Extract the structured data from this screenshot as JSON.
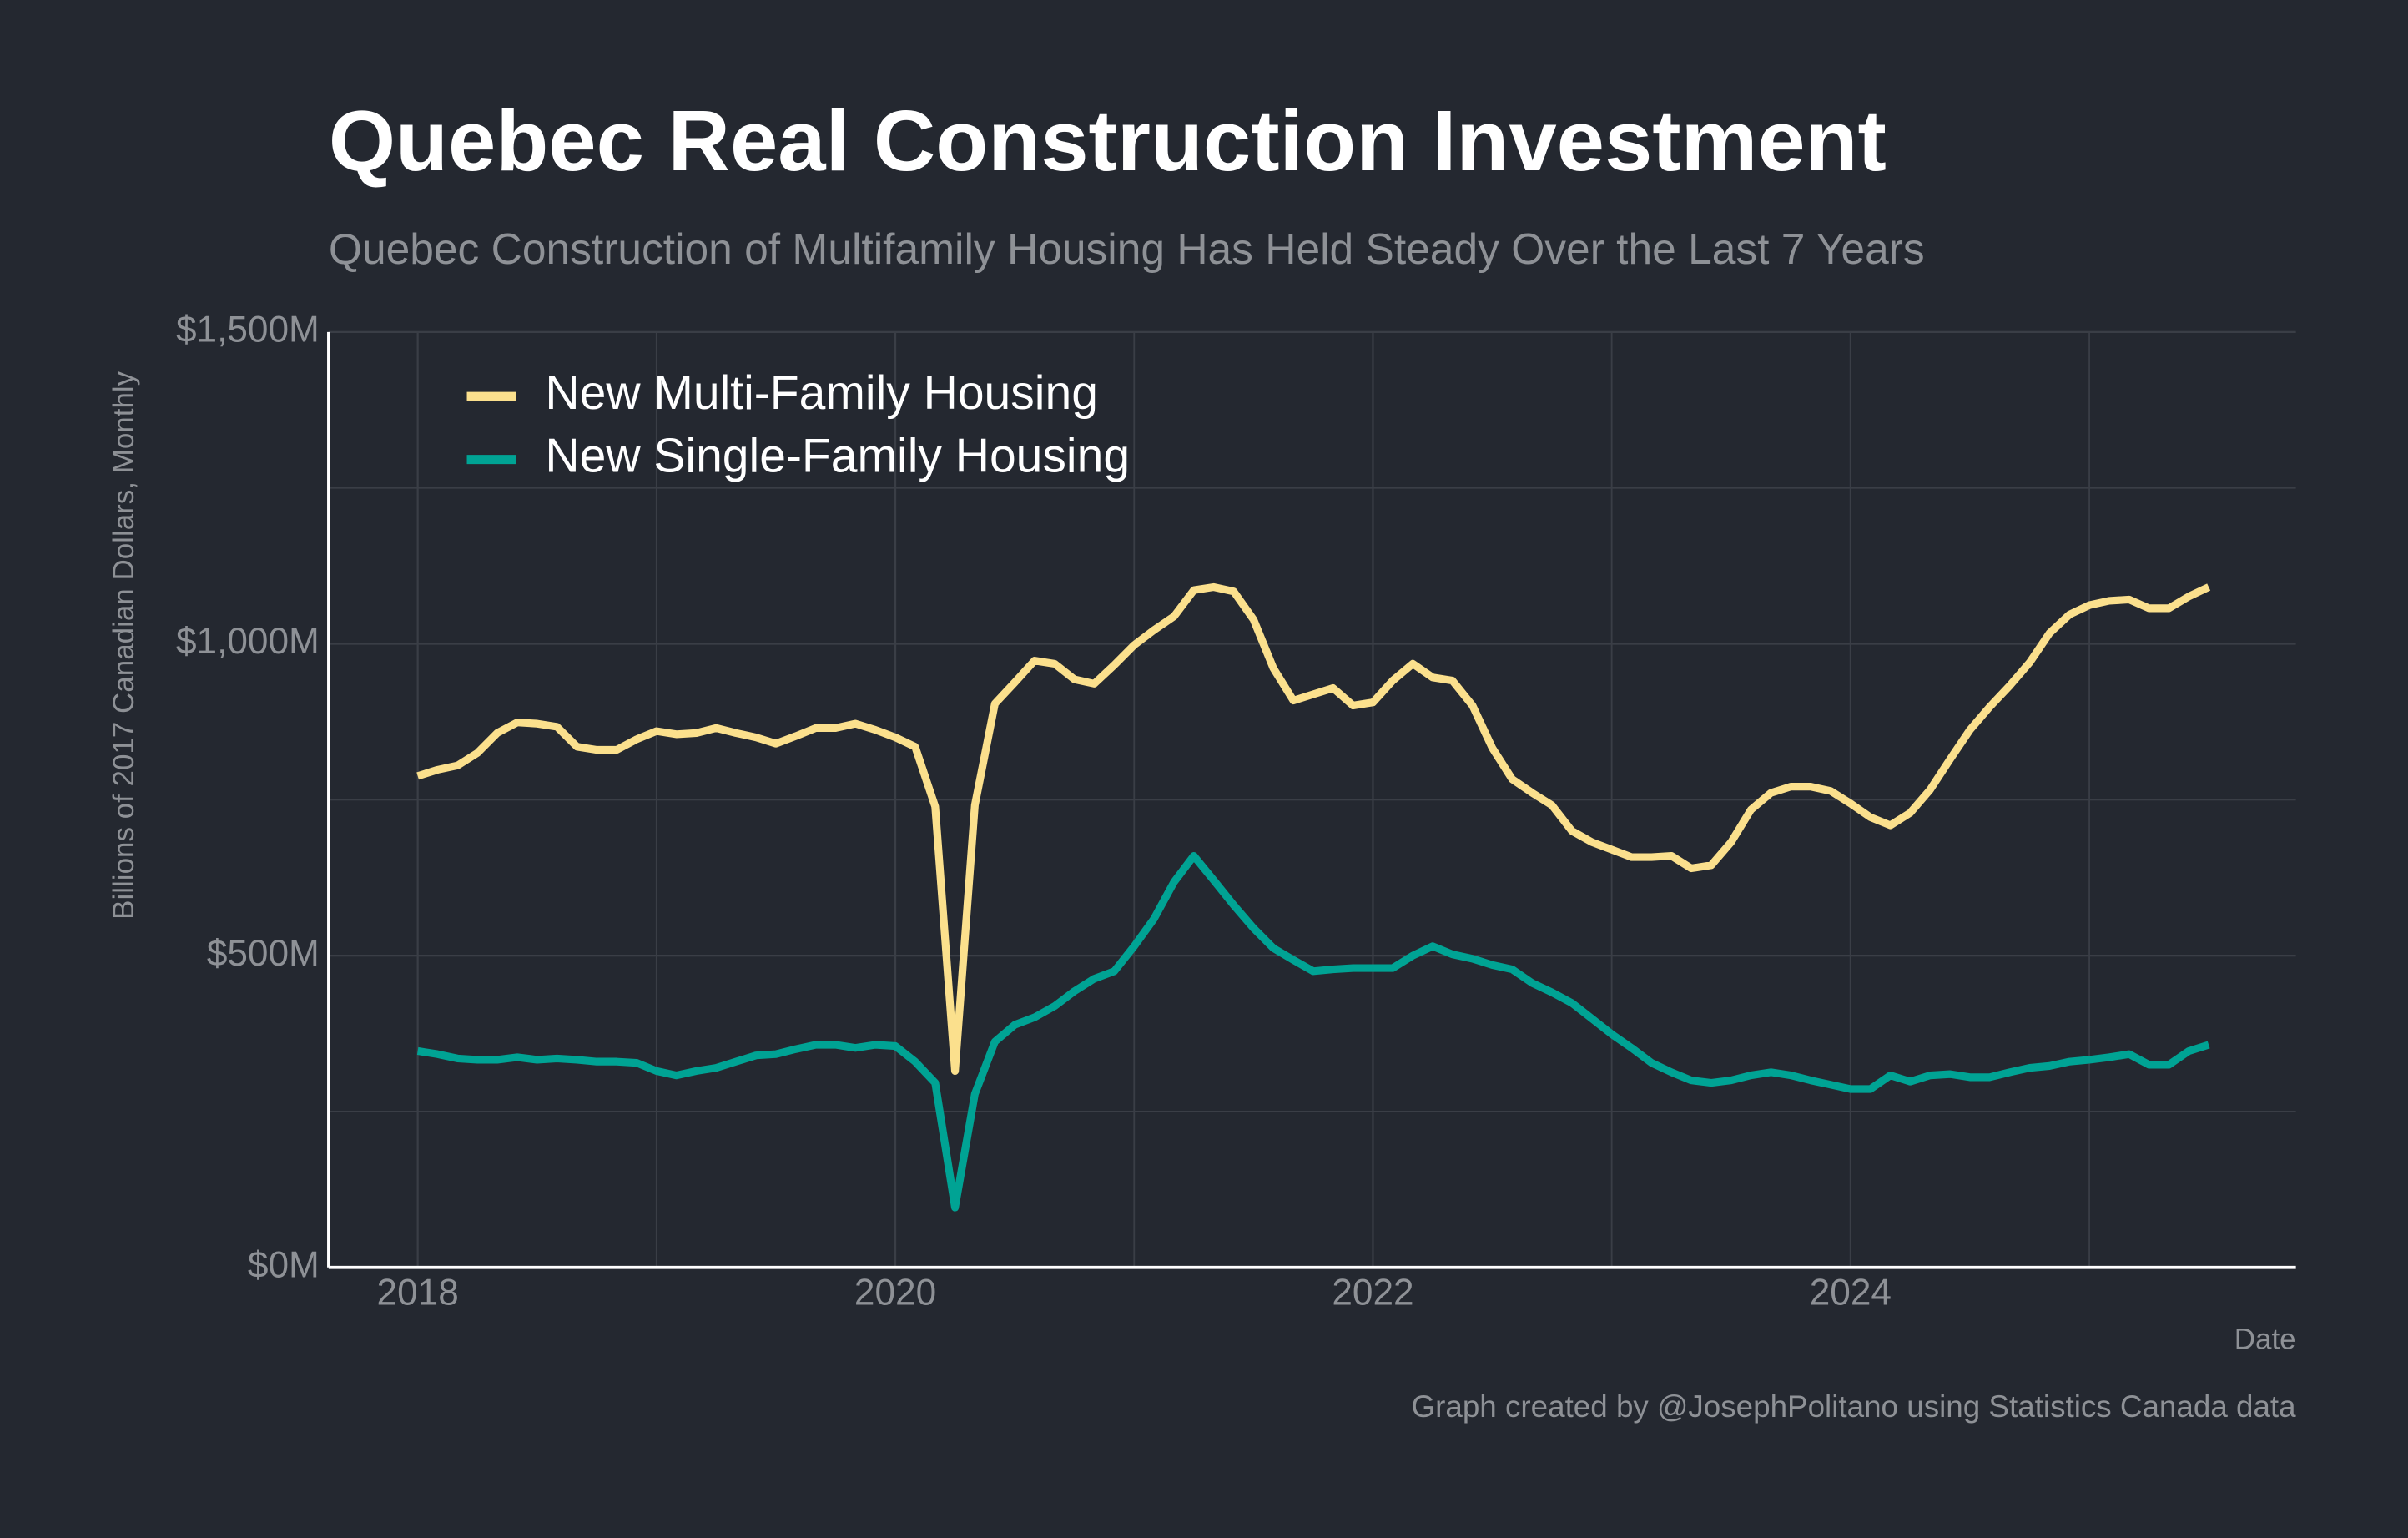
{
  "chart_data": {
    "type": "line",
    "title": "Quebec Real Construction Investment",
    "subtitle": "Quebec Construction of Multifamily Housing Has Held Steady Over the Last 7 Years",
    "ylabel": "Billions of 2017 Canadian Dollars, Monthly",
    "xlabel": "Date",
    "caption": "Graph created by @JosephPolitano using Statistics Canada data",
    "x": [
      2018,
      2018.083,
      2018.167,
      2018.25,
      2018.333,
      2018.417,
      2018.5,
      2018.583,
      2018.667,
      2018.75,
      2018.833,
      2018.917,
      2019,
      2019.083,
      2019.167,
      2019.25,
      2019.333,
      2019.417,
      2019.5,
      2019.583,
      2019.667,
      2019.75,
      2019.833,
      2019.917,
      2020,
      2020.083,
      2020.167,
      2020.25,
      2020.333,
      2020.417,
      2020.5,
      2020.583,
      2020.667,
      2020.75,
      2020.833,
      2020.917,
      2021,
      2021.083,
      2021.167,
      2021.25,
      2021.333,
      2021.417,
      2021.5,
      2021.583,
      2021.667,
      2021.75,
      2021.833,
      2021.917,
      2022,
      2022.083,
      2022.167,
      2022.25,
      2022.333,
      2022.417,
      2022.5,
      2022.583,
      2022.667,
      2022.75,
      2022.833,
      2022.917,
      2023,
      2023.083,
      2023.167,
      2023.25,
      2023.333,
      2023.417,
      2023.5,
      2023.583,
      2023.667,
      2023.75,
      2023.833,
      2023.917,
      2024,
      2024.083,
      2024.167,
      2024.25,
      2024.333,
      2024.417,
      2024.5,
      2024.583,
      2024.667,
      2024.75,
      2024.833,
      2024.917,
      2025,
      2025.083,
      2025.167,
      2025.25,
      2025.333,
      2025.417,
      2025.5
    ],
    "series": [
      {
        "name": "New Multi-Family Housing",
        "color": "#fbe08d",
        "values": [
          788,
          798,
          805,
          825,
          857,
          874,
          872,
          867,
          835,
          830,
          830,
          847,
          860,
          855,
          857,
          865,
          857,
          850,
          840,
          852,
          865,
          865,
          872,
          862,
          850,
          835,
          739,
          315,
          741,
          904,
          938,
          973,
          968,
          943,
          936,
          966,
          998,
          1022,
          1044,
          1086,
          1091,
          1084,
          1039,
          961,
          909,
          919,
          929,
          901,
          906,
          941,
          968,
          946,
          941,
          901,
          833,
          783,
          761,
          741,
          700,
          682,
          670,
          658,
          658,
          660,
          640,
          645,
          682,
          734,
          761,
          771,
          771,
          764,
          744,
          722,
          709,
          729,
          766,
          815,
          862,
          899,
          933,
          970,
          1017,
          1047,
          1062,
          1069,
          1071,
          1057,
          1057,
          1076,
          1091
        ]
      },
      {
        "name": "New Single-Family Housing",
        "color": "#00a394",
        "values": [
          347,
          342,
          335,
          333,
          333,
          337,
          333,
          335,
          333,
          330,
          330,
          328,
          315,
          308,
          315,
          320,
          330,
          340,
          342,
          350,
          357,
          357,
          352,
          357,
          355,
          330,
          296,
          96,
          278,
          362,
          389,
          401,
          419,
          443,
          463,
          475,
          515,
          559,
          618,
          660,
          621,
          581,
          544,
          512,
          493,
          475,
          478,
          480,
          480,
          480,
          500,
          515,
          502,
          495,
          485,
          478,
          456,
          441,
          424,
          399,
          374,
          352,
          328,
          313,
          300,
          296,
          300,
          308,
          313,
          308,
          300,
          293,
          286,
          286,
          308,
          298,
          308,
          310,
          305,
          305,
          313,
          320,
          323,
          330,
          333,
          337,
          342,
          325,
          325,
          347,
          357
        ]
      }
    ],
    "xlim": [
      2017.627,
      2025.865
    ],
    "ylim": [
      0,
      1500
    ],
    "xticks": [
      2018,
      2020,
      2022,
      2024
    ],
    "xticks_minor": [
      2019,
      2021,
      2023,
      2025
    ],
    "yticks": [
      {
        "value": 0,
        "label": "$0M"
      },
      {
        "value": 500,
        "label": "$500M"
      },
      {
        "value": 1000,
        "label": "$1,000M"
      },
      {
        "value": 1500,
        "label": "$1,500M"
      }
    ],
    "yticks_minor": [
      250,
      750,
      1250
    ],
    "grid": true,
    "legend": "upper left"
  }
}
